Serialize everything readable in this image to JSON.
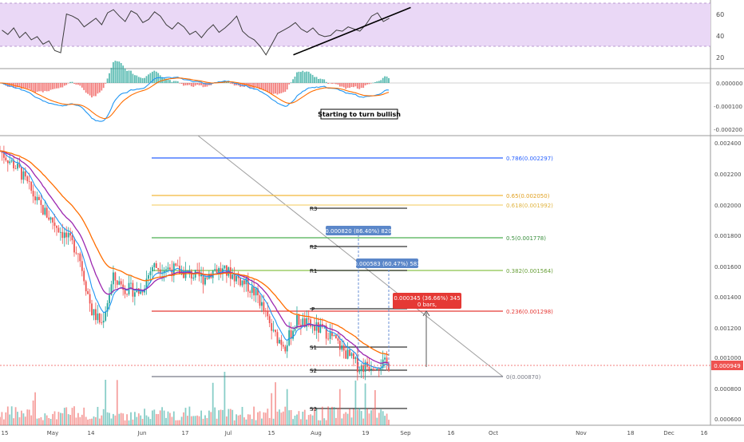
{
  "chart_data": [
    {
      "panel": "rsi",
      "type": "line",
      "y_axis": {
        "min": 10,
        "max": 75,
        "ticks": [
          60.0,
          40.0,
          20.0
        ]
      },
      "overbought": 70,
      "oversold": 30,
      "band_color": "#ead8f6",
      "line_color": "#3c3c3c",
      "x": [
        1,
        4,
        7,
        10,
        13,
        16,
        19,
        22,
        25,
        28,
        31,
        34,
        37,
        40,
        43,
        46,
        49,
        52,
        55,
        58,
        61,
        64,
        67,
        70,
        73,
        76,
        79,
        82,
        85,
        88,
        91,
        94,
        97,
        100,
        103,
        106,
        109,
        112,
        115,
        118,
        121,
        124,
        127,
        130,
        133,
        136,
        139,
        142,
        145,
        148,
        151,
        154,
        157,
        160,
        163,
        166,
        169,
        172,
        175,
        178,
        181,
        184,
        187,
        190,
        193,
        196,
        199
      ],
      "values": [
        45,
        41,
        47,
        38,
        43,
        36,
        39,
        32,
        35,
        26,
        24,
        60,
        58,
        55,
        48,
        52,
        56,
        50,
        61,
        64,
        58,
        53,
        63,
        60,
        52,
        55,
        62,
        58,
        50,
        46,
        52,
        48,
        41,
        44,
        38,
        45,
        50,
        43,
        47,
        52,
        58,
        44,
        39,
        36,
        30,
        22,
        32,
        42,
        45,
        48,
        52,
        46,
        43,
        47,
        41,
        39,
        40,
        45,
        44,
        48,
        46,
        44,
        50,
        58,
        61,
        53,
        56
      ],
      "trendline": {
        "from": [
          150,
          22
        ],
        "to": [
          210,
          66
        ]
      }
    },
    {
      "panel": "macd",
      "type": "bar",
      "y_axis": {
        "ticks": [
          "0.000000",
          "-0.000100",
          "-0.000200"
        ]
      },
      "histogram_colors": {
        "positive": "#26a69a",
        "negative": "#ef5350"
      },
      "annotations": [
        "Starting to turn bullish"
      ]
    },
    {
      "panel": "price",
      "type": "candlestick",
      "y_axis": {
        "ticks": [
          "0.002400",
          "0.002200",
          "0.002000",
          "0.001800",
          "0.001600",
          "0.001400",
          "0.001200",
          "0.001000",
          "0.000800",
          "0.000600"
        ],
        "min": 0.00055,
        "max": 0.00245
      },
      "last_price": "0.000949",
      "x_axis": {
        "ticks": [
          "15",
          "May",
          "14",
          "Jun",
          "17",
          "Jul",
          "15",
          "Aug",
          "19",
          "Sep",
          "16",
          "Oct",
          "Nov",
          "18",
          "Dec",
          "16"
        ]
      },
      "fibonacci": [
        {
          "label": "0.786(0.002297)",
          "color": "#2962ff"
        },
        {
          "label": "0.65(0.002050)",
          "color": "#f2b83a"
        },
        {
          "label": "0.618(0.001992)",
          "color": "#f5d37a"
        },
        {
          "label": "0.5(0.001778)",
          "color": "#4caf50"
        },
        {
          "label": "0.382(0.001564)",
          "color": "#8bc34a"
        },
        {
          "label": "0.236(0.001298)",
          "color": "#e53935"
        },
        {
          "label": "0(0.000870)",
          "color": "#787b86"
        }
      ],
      "pivots": [
        "R3",
        "R2",
        "R1",
        "P",
        "S1",
        "S2",
        "S3"
      ],
      "measure_labels": [
        "0.000820 (86.40%) 820",
        "0.000583 (60.47%) 583",
        "0.000345 (36.66%) 345",
        "0 bars,"
      ]
    }
  ]
}
